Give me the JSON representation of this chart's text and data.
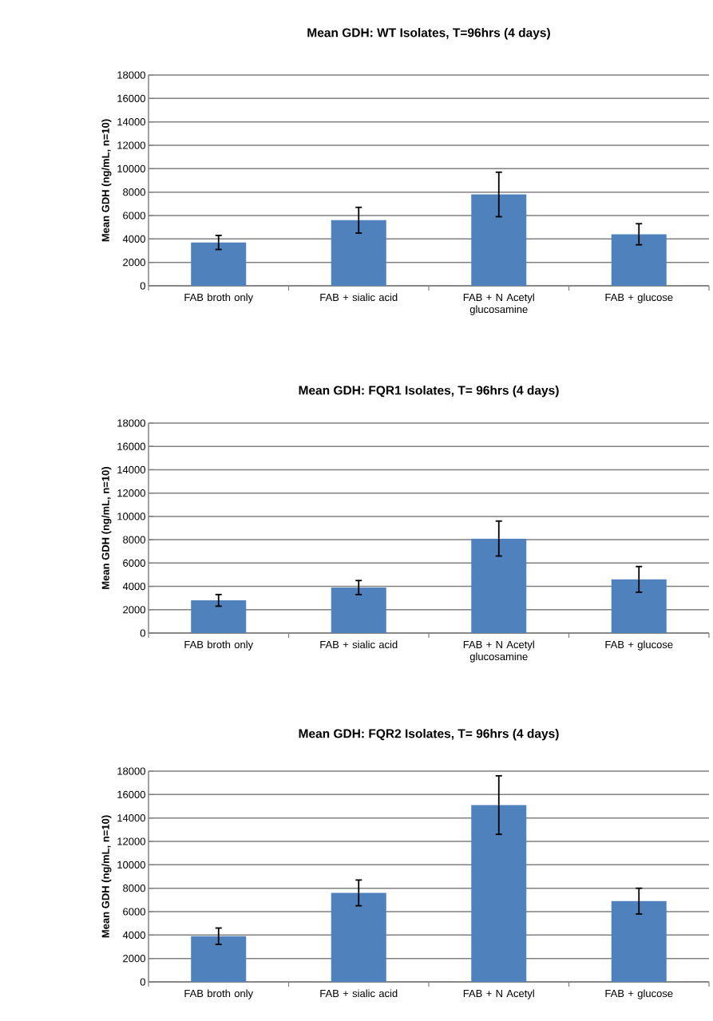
{
  "chart_data": [
    {
      "type": "bar",
      "title": "Mean GDH: WT Isolates, T=96hrs (4 days)",
      "ylabel": "Mean GDH (ng/mL, n=10)",
      "categories": [
        "FAB broth only",
        "FAB + sialic acid",
        "FAB + N Acetyl glucosamine",
        "FAB + glucose"
      ],
      "values": [
        3700,
        5600,
        7800,
        4400
      ],
      "errors": [
        600,
        1100,
        1900,
        900
      ],
      "color": "#4f81bd",
      "ylim": [
        0,
        18000
      ],
      "yticks": [
        0,
        2000,
        4000,
        6000,
        8000,
        10000,
        12000,
        14000,
        16000,
        18000
      ],
      "grid": "y"
    },
    {
      "type": "bar",
      "title": "Mean GDH: FQR1 Isolates, T= 96hrs (4 days)",
      "ylabel": "Mean GDH (ng/mL, n=10)",
      "categories": [
        "FAB broth only",
        "FAB + sialic acid",
        "FAB + N Acetyl glucosamine",
        "FAB + glucose"
      ],
      "values": [
        2800,
        3900,
        8100,
        4600
      ],
      "errors": [
        500,
        600,
        1500,
        1100
      ],
      "color": "#4f81bd",
      "ylim": [
        0,
        18000
      ],
      "yticks": [
        0,
        2000,
        4000,
        6000,
        8000,
        10000,
        12000,
        14000,
        16000,
        18000
      ],
      "grid": "y"
    },
    {
      "type": "bar",
      "title": "Mean GDH: FQR2 Isolates, T= 96hrs (4 days)",
      "ylabel": "Mean GDH (ng/mL, n=10)",
      "categories": [
        "FAB broth only",
        "FAB + sialic acid",
        "FAB + N Acetyl",
        "FAB + glucose"
      ],
      "values": [
        3900,
        7600,
        15100,
        6900
      ],
      "errors": [
        700,
        1100,
        2500,
        1100
      ],
      "color": "#4f81bd",
      "ylim": [
        0,
        18000
      ],
      "yticks": [
        0,
        2000,
        4000,
        6000,
        8000,
        10000,
        12000,
        14000,
        16000,
        18000
      ],
      "grid": "y"
    }
  ]
}
